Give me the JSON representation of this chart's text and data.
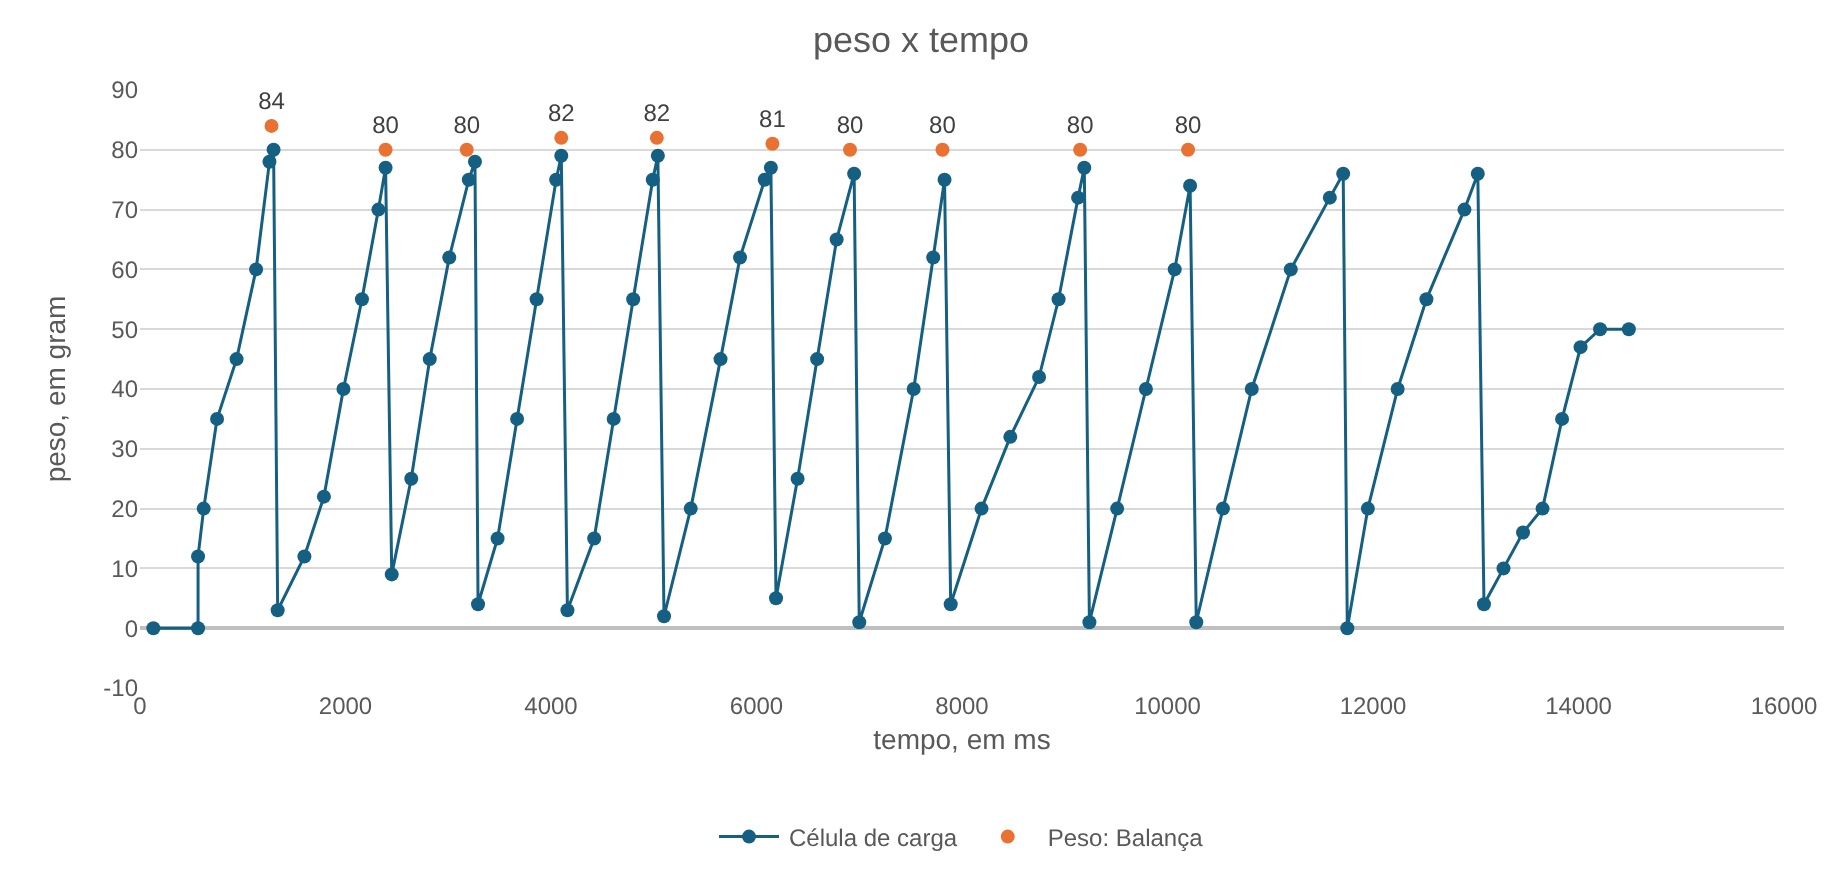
{
  "chart_data": {
    "type": "scatter",
    "title": "peso x tempo",
    "xlabel": "tempo, em ms",
    "ylabel": "peso, em gram",
    "xlim": [
      0,
      16000
    ],
    "xticks": [
      0,
      2000,
      4000,
      6000,
      8000,
      10000,
      12000,
      14000,
      16000
    ],
    "ylim": [
      -10,
      90
    ],
    "yticks": [
      -10,
      0,
      10,
      20,
      30,
      40,
      50,
      60,
      70,
      80,
      90
    ],
    "grid": "y",
    "legend": "bottom",
    "marker": "circle",
    "series": [
      {
        "name": "Célula de carga",
        "type": "line",
        "color": "#156082",
        "x": [
          130,
          565,
          565,
          620,
          750,
          940,
          1130,
          1260,
          1300,
          1340,
          1600,
          1790,
          1980,
          2160,
          2320,
          2390,
          2450,
          2640,
          2820,
          3010,
          3200,
          3260,
          3290,
          3480,
          3670,
          3860,
          4050,
          4100,
          4160,
          4420,
          4610,
          4800,
          4990,
          5040,
          5100,
          5360,
          5650,
          5840,
          6080,
          6140,
          6190,
          6400,
          6590,
          6780,
          6950,
          7000,
          7250,
          7530,
          7720,
          7830,
          7890,
          8190,
          8470,
          8750,
          8940,
          9130,
          9190,
          9240,
          9510,
          9790,
          10070,
          10220,
          10280,
          10540,
          10820,
          11200,
          11580,
          11710,
          11750,
          11950,
          12240,
          12520,
          12890,
          13020,
          13080,
          13270,
          13460,
          13650,
          13840,
          14020,
          14210,
          14490
        ],
        "values": [
          0,
          0,
          12,
          20,
          35,
          45,
          60,
          78,
          80,
          3,
          12,
          22,
          40,
          55,
          70,
          77,
          9,
          25,
          45,
          62,
          75,
          78,
          4,
          15,
          35,
          55,
          75,
          79,
          3,
          15,
          35,
          55,
          75,
          79,
          2,
          20,
          45,
          62,
          75,
          77,
          5,
          25,
          45,
          65,
          76,
          1,
          15,
          40,
          62,
          75,
          4,
          20,
          32,
          42,
          55,
          72,
          77,
          1,
          20,
          40,
          60,
          74,
          1,
          20,
          40,
          60,
          72,
          76,
          0,
          20,
          40,
          55,
          70,
          76,
          4,
          10,
          16,
          20,
          35,
          47,
          50,
          50
        ]
      },
      {
        "name": "Peso: Balança",
        "color": "#e97132",
        "x": [
          1280,
          2390,
          3180,
          4100,
          5030,
          6155,
          6910,
          7810,
          9150,
          10200
        ],
        "values": [
          84,
          80,
          80,
          82,
          82,
          81,
          80,
          80,
          80,
          80
        ],
        "data_labels": true
      }
    ]
  }
}
